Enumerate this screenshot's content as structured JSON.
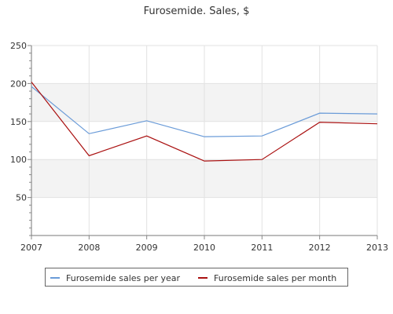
{
  "chart_data": {
    "type": "line",
    "title": "Furosemide. Sales, $",
    "xlabel": "",
    "ylabel": "",
    "categories": [
      "2007",
      "2008",
      "2009",
      "2010",
      "2011",
      "2012",
      "2013"
    ],
    "ylim": [
      0,
      250
    ],
    "yticks": [
      50,
      100,
      150,
      200,
      250
    ],
    "grid": true,
    "band_fill": "#f3f3f3",
    "legend_position": "bottom",
    "series": [
      {
        "name": "Furosemide sales per year",
        "color": "#6a9bd8",
        "values": [
          196,
          134,
          151,
          130,
          131,
          161,
          160
        ]
      },
      {
        "name": "Furosemide sales per month",
        "color": "#aa1111",
        "values": [
          202,
          105,
          131,
          98,
          100,
          149,
          147
        ]
      }
    ]
  }
}
